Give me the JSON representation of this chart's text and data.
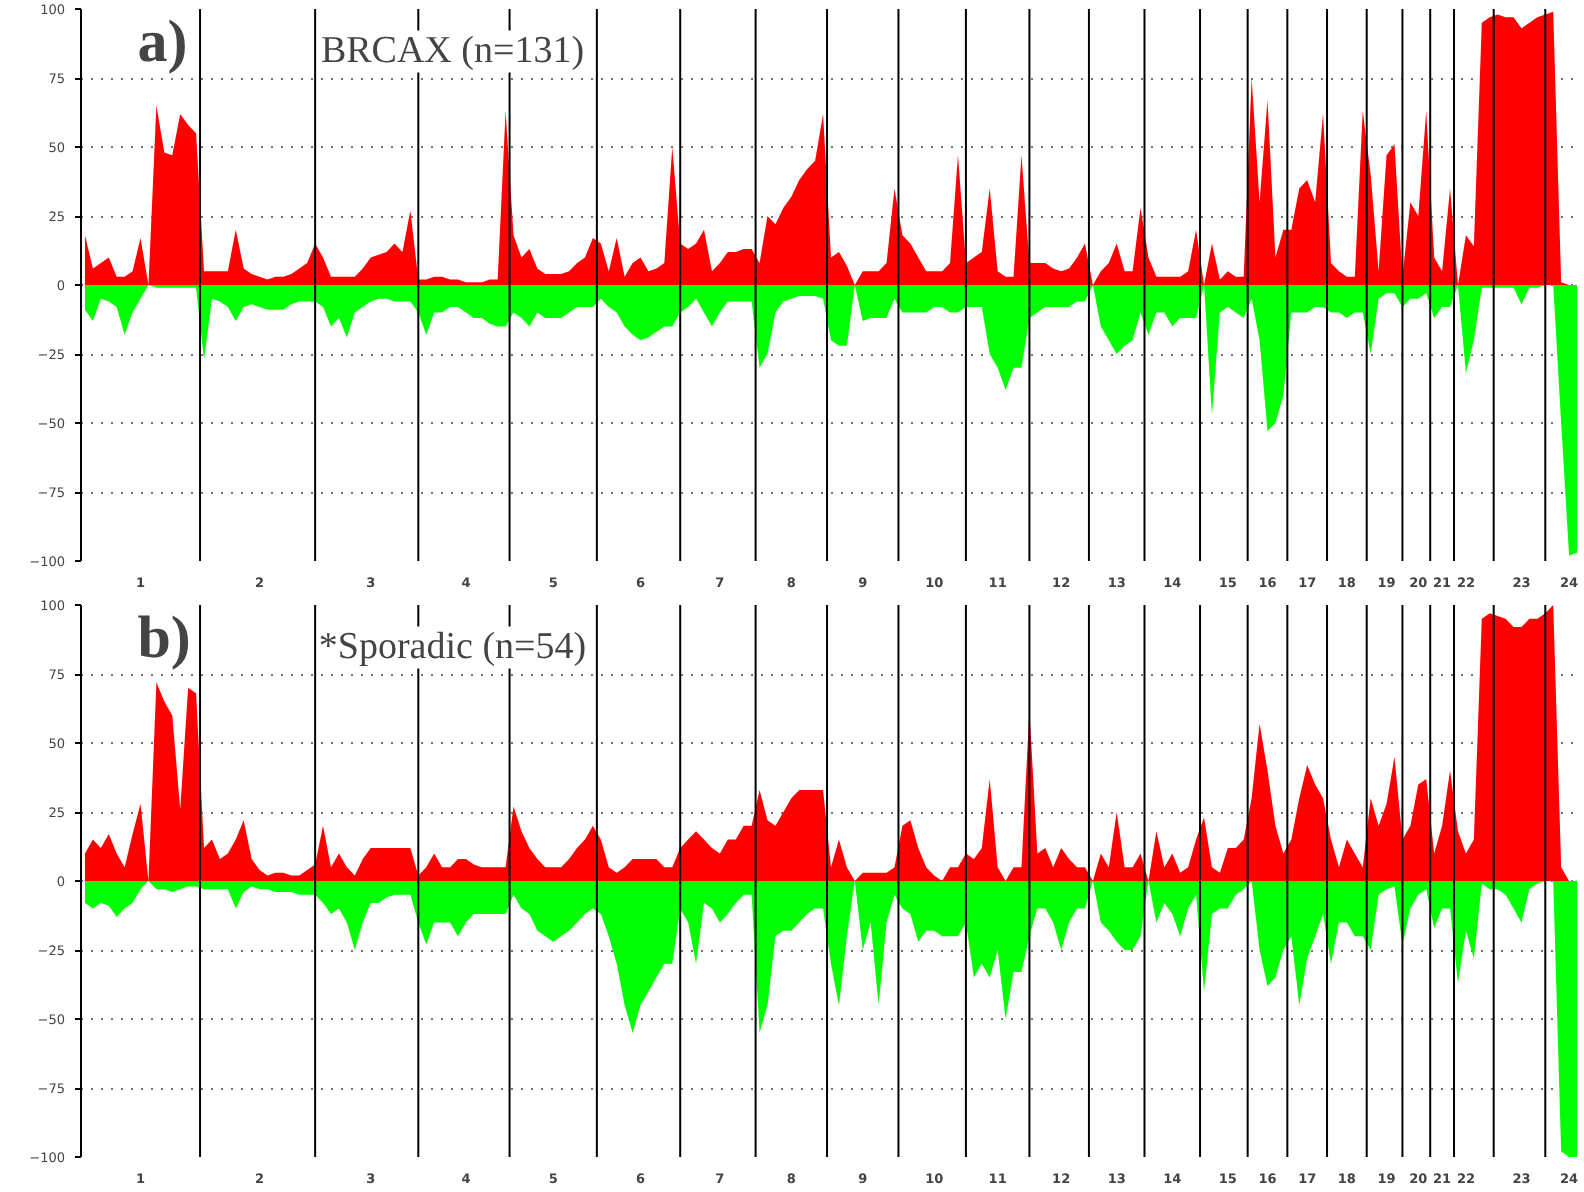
{
  "chart_data": [
    {
      "type": "area",
      "title": "BRCAX (n=131)",
      "annotations": [
        "a)"
      ],
      "ylim": [
        -100,
        100
      ],
      "yticks": [
        -100,
        -75,
        -50,
        -25,
        0,
        25,
        50,
        75,
        100
      ],
      "grid": "y",
      "categories": [
        null,
        null,
        null,
        null,
        null,
        null,
        null,
        "1",
        null,
        null,
        null,
        null,
        null,
        null,
        null,
        null,
        null,
        null,
        null,
        null,
        null,
        null,
        "2",
        null,
        null,
        null,
        null,
        null,
        null,
        null,
        null,
        null,
        null,
        null,
        null,
        null,
        "3",
        null,
        null,
        null,
        null,
        null,
        null,
        null,
        null,
        null,
        null,
        null,
        "4",
        null,
        null,
        null,
        null,
        null,
        null,
        null,
        null,
        null,
        null,
        "5",
        null,
        null,
        null,
        null,
        null,
        null,
        null,
        null,
        null,
        null,
        "6",
        null,
        null,
        null,
        null,
        null,
        null,
        null,
        null,
        null,
        "7",
        null,
        null,
        null,
        null,
        null,
        null,
        null,
        null,
        "8",
        null,
        null,
        null,
        null,
        null,
        null,
        null,
        null,
        "9",
        null,
        null,
        null,
        null,
        null,
        null,
        null,
        null,
        "10",
        null,
        null,
        null,
        null,
        null,
        null,
        null,
        "11",
        null,
        null,
        null,
        null,
        null,
        null,
        null,
        "12",
        null,
        null,
        null,
        null,
        null,
        null,
        "13",
        null,
        null,
        null,
        null,
        null,
        null,
        "14",
        null,
        null,
        null,
        null,
        null,
        null,
        "15",
        null,
        null,
        null,
        null,
        "16",
        null,
        null,
        null,
        null,
        "17",
        null,
        null,
        null,
        null,
        "18",
        null,
        null,
        null,
        null,
        "19",
        null,
        null,
        null,
        "20",
        null,
        null,
        "21",
        null,
        null,
        "22",
        null,
        null,
        null,
        null,
        null,
        null,
        "23",
        null,
        null,
        null,
        null,
        null,
        "24",
        null
      ],
      "series": [
        {
          "color": "#ff0000",
          "values": [
            18,
            6,
            8,
            10,
            3,
            3,
            5,
            17,
            0,
            65,
            48,
            47,
            62,
            58,
            55,
            5,
            5,
            5,
            5,
            20,
            6,
            4,
            3,
            2,
            3,
            3,
            4,
            6,
            8,
            15,
            10,
            3,
            3,
            3,
            3,
            6,
            10,
            11,
            12,
            15,
            12,
            27,
            2,
            2,
            3,
            3,
            2,
            2,
            1,
            1,
            1,
            2,
            2,
            63,
            18,
            10,
            13,
            6,
            4,
            4,
            4,
            5,
            8,
            10,
            17,
            15,
            5,
            17,
            3,
            8,
            10,
            5,
            6,
            8,
            50,
            15,
            13,
            15,
            20,
            5,
            8,
            12,
            12,
            13,
            13,
            8,
            25,
            22,
            28,
            32,
            38,
            42,
            45,
            62,
            10,
            12,
            7,
            0,
            5,
            5,
            5,
            8,
            35,
            18,
            15,
            10,
            5,
            5,
            5,
            8,
            47,
            8,
            10,
            12,
            35,
            5,
            3,
            3,
            47,
            8,
            8,
            8,
            6,
            5,
            6,
            10,
            15,
            0,
            5,
            8,
            15,
            5,
            5,
            28,
            10,
            3,
            3,
            3,
            3,
            5,
            20,
            0,
            15,
            2,
            5,
            3,
            3,
            75,
            30,
            67,
            10,
            20,
            20,
            35,
            38,
            30,
            62,
            8,
            5,
            3,
            3,
            63,
            40,
            5,
            47,
            51,
            3,
            30,
            25,
            63,
            10,
            5,
            35,
            0,
            18,
            14,
            95,
            97,
            98,
            97,
            97,
            93,
            95,
            97,
            98,
            99,
            1,
            0,
            0
          ]
        },
        {
          "color": "#00ff00",
          "values": [
            -9,
            -13,
            -5,
            -6,
            -8,
            -18,
            -10,
            -5,
            0,
            -1,
            -1,
            -1,
            -1,
            -1,
            -1,
            -27,
            -5,
            -6,
            -8,
            -13,
            -8,
            -7,
            -8,
            -9,
            -9,
            -9,
            -7,
            -6,
            -6,
            -6,
            -8,
            -15,
            -12,
            -19,
            -10,
            -8,
            -6,
            -5,
            -5,
            -6,
            -6,
            -6,
            -10,
            -18,
            -10,
            -10,
            -8,
            -8,
            -10,
            -12,
            -12,
            -14,
            -15,
            -15,
            -10,
            -12,
            -15,
            -10,
            -12,
            -12,
            -12,
            -10,
            -8,
            -8,
            -8,
            -5,
            -8,
            -10,
            -15,
            -18,
            -20,
            -19,
            -17,
            -15,
            -15,
            -10,
            -8,
            -5,
            -10,
            -15,
            -10,
            -6,
            -6,
            -6,
            -6,
            -30,
            -25,
            -10,
            -6,
            -5,
            -4,
            -4,
            -4,
            -5,
            -20,
            -22,
            -22,
            0,
            -13,
            -12,
            -12,
            -12,
            -5,
            -10,
            -10,
            -10,
            -10,
            -8,
            -8,
            -10,
            -10,
            -8,
            -8,
            -8,
            -25,
            -30,
            -38,
            -30,
            -30,
            -12,
            -10,
            -8,
            -8,
            -8,
            -8,
            -6,
            -6,
            0,
            -15,
            -20,
            -25,
            -22,
            -20,
            -10,
            -18,
            -10,
            -10,
            -15,
            -12,
            -12,
            -12,
            0,
            -47,
            -10,
            -8,
            -10,
            -12,
            -5,
            -20,
            -53,
            -50,
            -40,
            -10,
            -10,
            -10,
            -8,
            -8,
            -10,
            -10,
            -12,
            -10,
            -10,
            -25,
            -5,
            -3,
            -3,
            -8,
            -5,
            -5,
            -3,
            -12,
            -8,
            -8,
            0,
            -32,
            -20,
            -1,
            -1,
            -1,
            -1,
            -1,
            -7,
            -1,
            -1,
            0,
            0,
            -50,
            -98,
            -97
          ]
        }
      ]
    },
    {
      "type": "area",
      "title": "*Sporadic (n=54)",
      "annotations": [
        "b)"
      ],
      "ylim": [
        -100,
        100
      ],
      "yticks": [
        -100,
        -75,
        -50,
        -25,
        0,
        25,
        50,
        75,
        100
      ],
      "grid": "y",
      "categories": [
        null,
        null,
        null,
        null,
        null,
        null,
        null,
        "1",
        null,
        null,
        null,
        null,
        null,
        null,
        null,
        null,
        null,
        null,
        null,
        null,
        null,
        null,
        "2",
        null,
        null,
        null,
        null,
        null,
        null,
        null,
        null,
        null,
        null,
        null,
        null,
        null,
        "3",
        null,
        null,
        null,
        null,
        null,
        null,
        null,
        null,
        null,
        null,
        null,
        "4",
        null,
        null,
        null,
        null,
        null,
        null,
        null,
        null,
        null,
        null,
        "5",
        null,
        null,
        null,
        null,
        null,
        null,
        null,
        null,
        null,
        null,
        "6",
        null,
        null,
        null,
        null,
        null,
        null,
        null,
        null,
        null,
        "7",
        null,
        null,
        null,
        null,
        null,
        null,
        null,
        null,
        "8",
        null,
        null,
        null,
        null,
        null,
        null,
        null,
        null,
        "9",
        null,
        null,
        null,
        null,
        null,
        null,
        null,
        null,
        "10",
        null,
        null,
        null,
        null,
        null,
        null,
        null,
        "11",
        null,
        null,
        null,
        null,
        null,
        null,
        null,
        "12",
        null,
        null,
        null,
        null,
        null,
        null,
        "13",
        null,
        null,
        null,
        null,
        null,
        null,
        "14",
        null,
        null,
        null,
        null,
        null,
        null,
        "15",
        null,
        null,
        null,
        null,
        "16",
        null,
        null,
        null,
        null,
        "17",
        null,
        null,
        null,
        null,
        "18",
        null,
        null,
        null,
        null,
        "19",
        null,
        null,
        null,
        "20",
        null,
        null,
        "21",
        null,
        null,
        "22",
        null,
        null,
        null,
        null,
        null,
        null,
        "23",
        null,
        null,
        null,
        null,
        null,
        "24",
        null
      ],
      "series": [
        {
          "color": "#ff0000",
          "values": [
            10,
            15,
            12,
            17,
            10,
            5,
            17,
            28,
            0,
            72,
            65,
            60,
            26,
            70,
            68,
            12,
            15,
            8,
            10,
            15,
            22,
            8,
            4,
            2,
            3,
            3,
            2,
            2,
            4,
            6,
            20,
            5,
            10,
            5,
            2,
            8,
            12,
            12,
            12,
            12,
            12,
            12,
            2,
            5,
            10,
            5,
            5,
            8,
            8,
            6,
            5,
            5,
            5,
            5,
            27,
            18,
            12,
            8,
            5,
            5,
            5,
            8,
            12,
            15,
            20,
            15,
            5,
            3,
            5,
            8,
            8,
            8,
            8,
            5,
            5,
            12,
            15,
            18,
            15,
            12,
            10,
            15,
            15,
            20,
            20,
            33,
            22,
            20,
            25,
            30,
            33,
            33,
            33,
            33,
            5,
            15,
            5,
            0,
            3,
            3,
            3,
            3,
            5,
            20,
            22,
            12,
            5,
            2,
            0,
            5,
            5,
            10,
            8,
            12,
            37,
            5,
            0,
            5,
            5,
            62,
            10,
            12,
            5,
            12,
            8,
            5,
            5,
            0,
            10,
            5,
            25,
            5,
            5,
            10,
            0,
            18,
            5,
            10,
            3,
            5,
            15,
            23,
            5,
            3,
            12,
            12,
            15,
            30,
            57,
            40,
            20,
            10,
            15,
            30,
            42,
            35,
            30,
            15,
            5,
            15,
            10,
            5,
            30,
            20,
            28,
            45,
            15,
            20,
            35,
            37,
            10,
            20,
            40,
            18,
            10,
            15,
            95,
            97,
            96,
            95,
            92,
            92,
            95,
            95,
            97,
            100,
            5,
            0,
            0
          ]
        },
        {
          "color": "#00ff00",
          "values": [
            -8,
            -10,
            -8,
            -9,
            -13,
            -10,
            -8,
            -3,
            0,
            -3,
            -3,
            -4,
            -3,
            -2,
            -2,
            -3,
            -3,
            -3,
            -3,
            -10,
            -4,
            -2,
            -3,
            -3,
            -4,
            -4,
            -4,
            -5,
            -5,
            -5,
            -8,
            -12,
            -10,
            -15,
            -25,
            -15,
            -8,
            -8,
            -6,
            -5,
            -5,
            -5,
            -15,
            -23,
            -15,
            -15,
            -15,
            -20,
            -15,
            -12,
            -12,
            -12,
            -12,
            -12,
            -5,
            -10,
            -12,
            -18,
            -20,
            -22,
            -20,
            -18,
            -15,
            -12,
            -10,
            -12,
            -20,
            -30,
            -45,
            -55,
            -45,
            -40,
            -35,
            -30,
            -30,
            -10,
            -15,
            -30,
            -8,
            -10,
            -15,
            -12,
            -8,
            -5,
            -5,
            -55,
            -45,
            -20,
            -18,
            -18,
            -15,
            -12,
            -10,
            -10,
            -30,
            -45,
            -20,
            0,
            -25,
            -15,
            -45,
            -15,
            -5,
            -10,
            -12,
            -22,
            -18,
            -18,
            -20,
            -20,
            -20,
            -15,
            -35,
            -30,
            -35,
            -25,
            -50,
            -33,
            -33,
            -20,
            -10,
            -10,
            -15,
            -25,
            -15,
            -10,
            -10,
            0,
            -15,
            -18,
            -22,
            -25,
            -25,
            -20,
            0,
            -15,
            -8,
            -12,
            -20,
            -10,
            -5,
            -40,
            -12,
            -10,
            -10,
            -5,
            -3,
            0,
            -25,
            -38,
            -35,
            -25,
            -20,
            -45,
            -28,
            -20,
            -12,
            -30,
            -15,
            -15,
            -20,
            -20,
            -25,
            -5,
            -3,
            -2,
            -23,
            -10,
            -5,
            -3,
            -17,
            -10,
            -10,
            -37,
            -18,
            -28,
            -1,
            -3,
            -3,
            -5,
            -10,
            -15,
            -3,
            -1,
            0,
            0,
            -98,
            -100,
            -100
          ]
        }
      ]
    }
  ]
}
